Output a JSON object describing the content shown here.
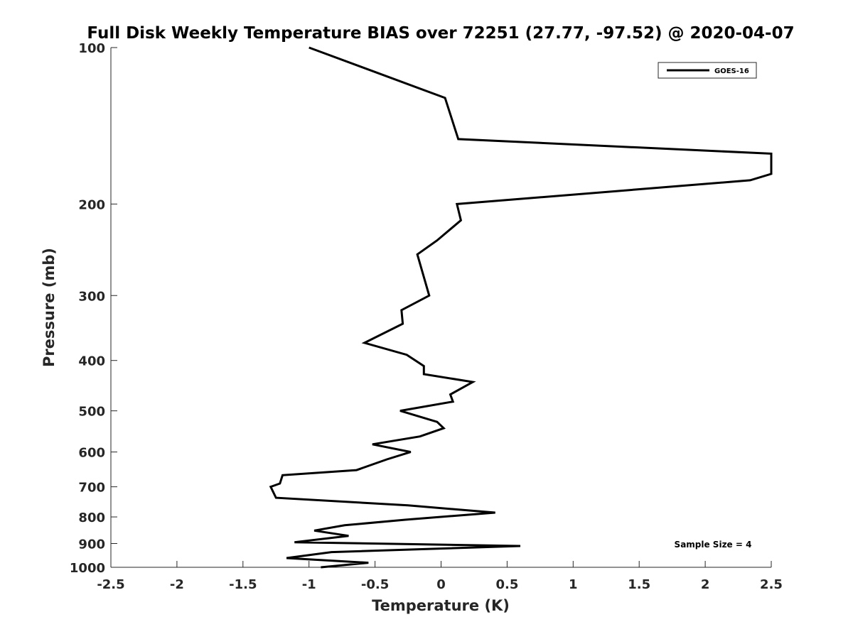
{
  "chart_data": {
    "type": "line",
    "title": "Full Disk Weekly Temperature BIAS over 72251 (27.77, -97.52) @ 2020-04-07",
    "xlabel": "Temperature (K)",
    "ylabel": "Pressure (mb)",
    "xlim": [
      -2.5,
      2.5
    ],
    "ylim": [
      100,
      1000
    ],
    "y_scale": "log",
    "y_reversed": true,
    "xticks": [
      -2.5,
      -2,
      -1.5,
      -1,
      -0.5,
      0,
      0.5,
      1,
      1.5,
      2,
      2.5
    ],
    "xtick_labels": [
      "-2.5",
      "-2",
      "-1.5",
      "-1",
      "-0.5",
      "0",
      "0.5",
      "1",
      "1.5",
      "2",
      "2.5"
    ],
    "yticks": [
      100,
      200,
      300,
      400,
      500,
      600,
      700,
      800,
      900,
      1000
    ],
    "ytick_labels": [
      "100",
      "200",
      "300",
      "400",
      "500",
      "600",
      "700",
      "800",
      "900",
      "1000"
    ],
    "grid": false,
    "legend_position": "top-right",
    "annotation": "Sample Size = 4",
    "series": [
      {
        "name": "GOES-16",
        "color": "#000000",
        "points": [
          [
            -1.0,
            100
          ],
          [
            0.03,
            125
          ],
          [
            0.13,
            150
          ],
          [
            2.5,
            160
          ],
          [
            2.5,
            170
          ],
          [
            2.5,
            175
          ],
          [
            2.34,
            180
          ],
          [
            0.12,
            200
          ],
          [
            0.15,
            215
          ],
          [
            -0.03,
            235
          ],
          [
            -0.18,
            250
          ],
          [
            -0.09,
            300
          ],
          [
            -0.3,
            320
          ],
          [
            -0.29,
            340
          ],
          [
            -0.58,
            370
          ],
          [
            -0.26,
            390
          ],
          [
            -0.13,
            410
          ],
          [
            -0.13,
            425
          ],
          [
            0.24,
            440
          ],
          [
            0.07,
            465
          ],
          [
            0.09,
            480
          ],
          [
            -0.31,
            500
          ],
          [
            -0.03,
            525
          ],
          [
            0.02,
            540
          ],
          [
            -0.16,
            560
          ],
          [
            -0.52,
            580
          ],
          [
            -0.23,
            600
          ],
          [
            -0.41,
            620
          ],
          [
            -0.64,
            650
          ],
          [
            -1.2,
            665
          ],
          [
            -1.22,
            690
          ],
          [
            -1.29,
            700
          ],
          [
            -1.25,
            735
          ],
          [
            -0.25,
            760
          ],
          [
            0.41,
            785
          ],
          [
            -0.27,
            810
          ],
          [
            -0.73,
            830
          ],
          [
            -0.96,
            850
          ],
          [
            -0.7,
            870
          ],
          [
            -1.11,
            895
          ],
          [
            0.6,
            910
          ],
          [
            -0.83,
            935
          ],
          [
            -1.17,
            960
          ],
          [
            -0.55,
            980
          ],
          [
            -0.91,
            1000
          ]
        ]
      }
    ]
  }
}
